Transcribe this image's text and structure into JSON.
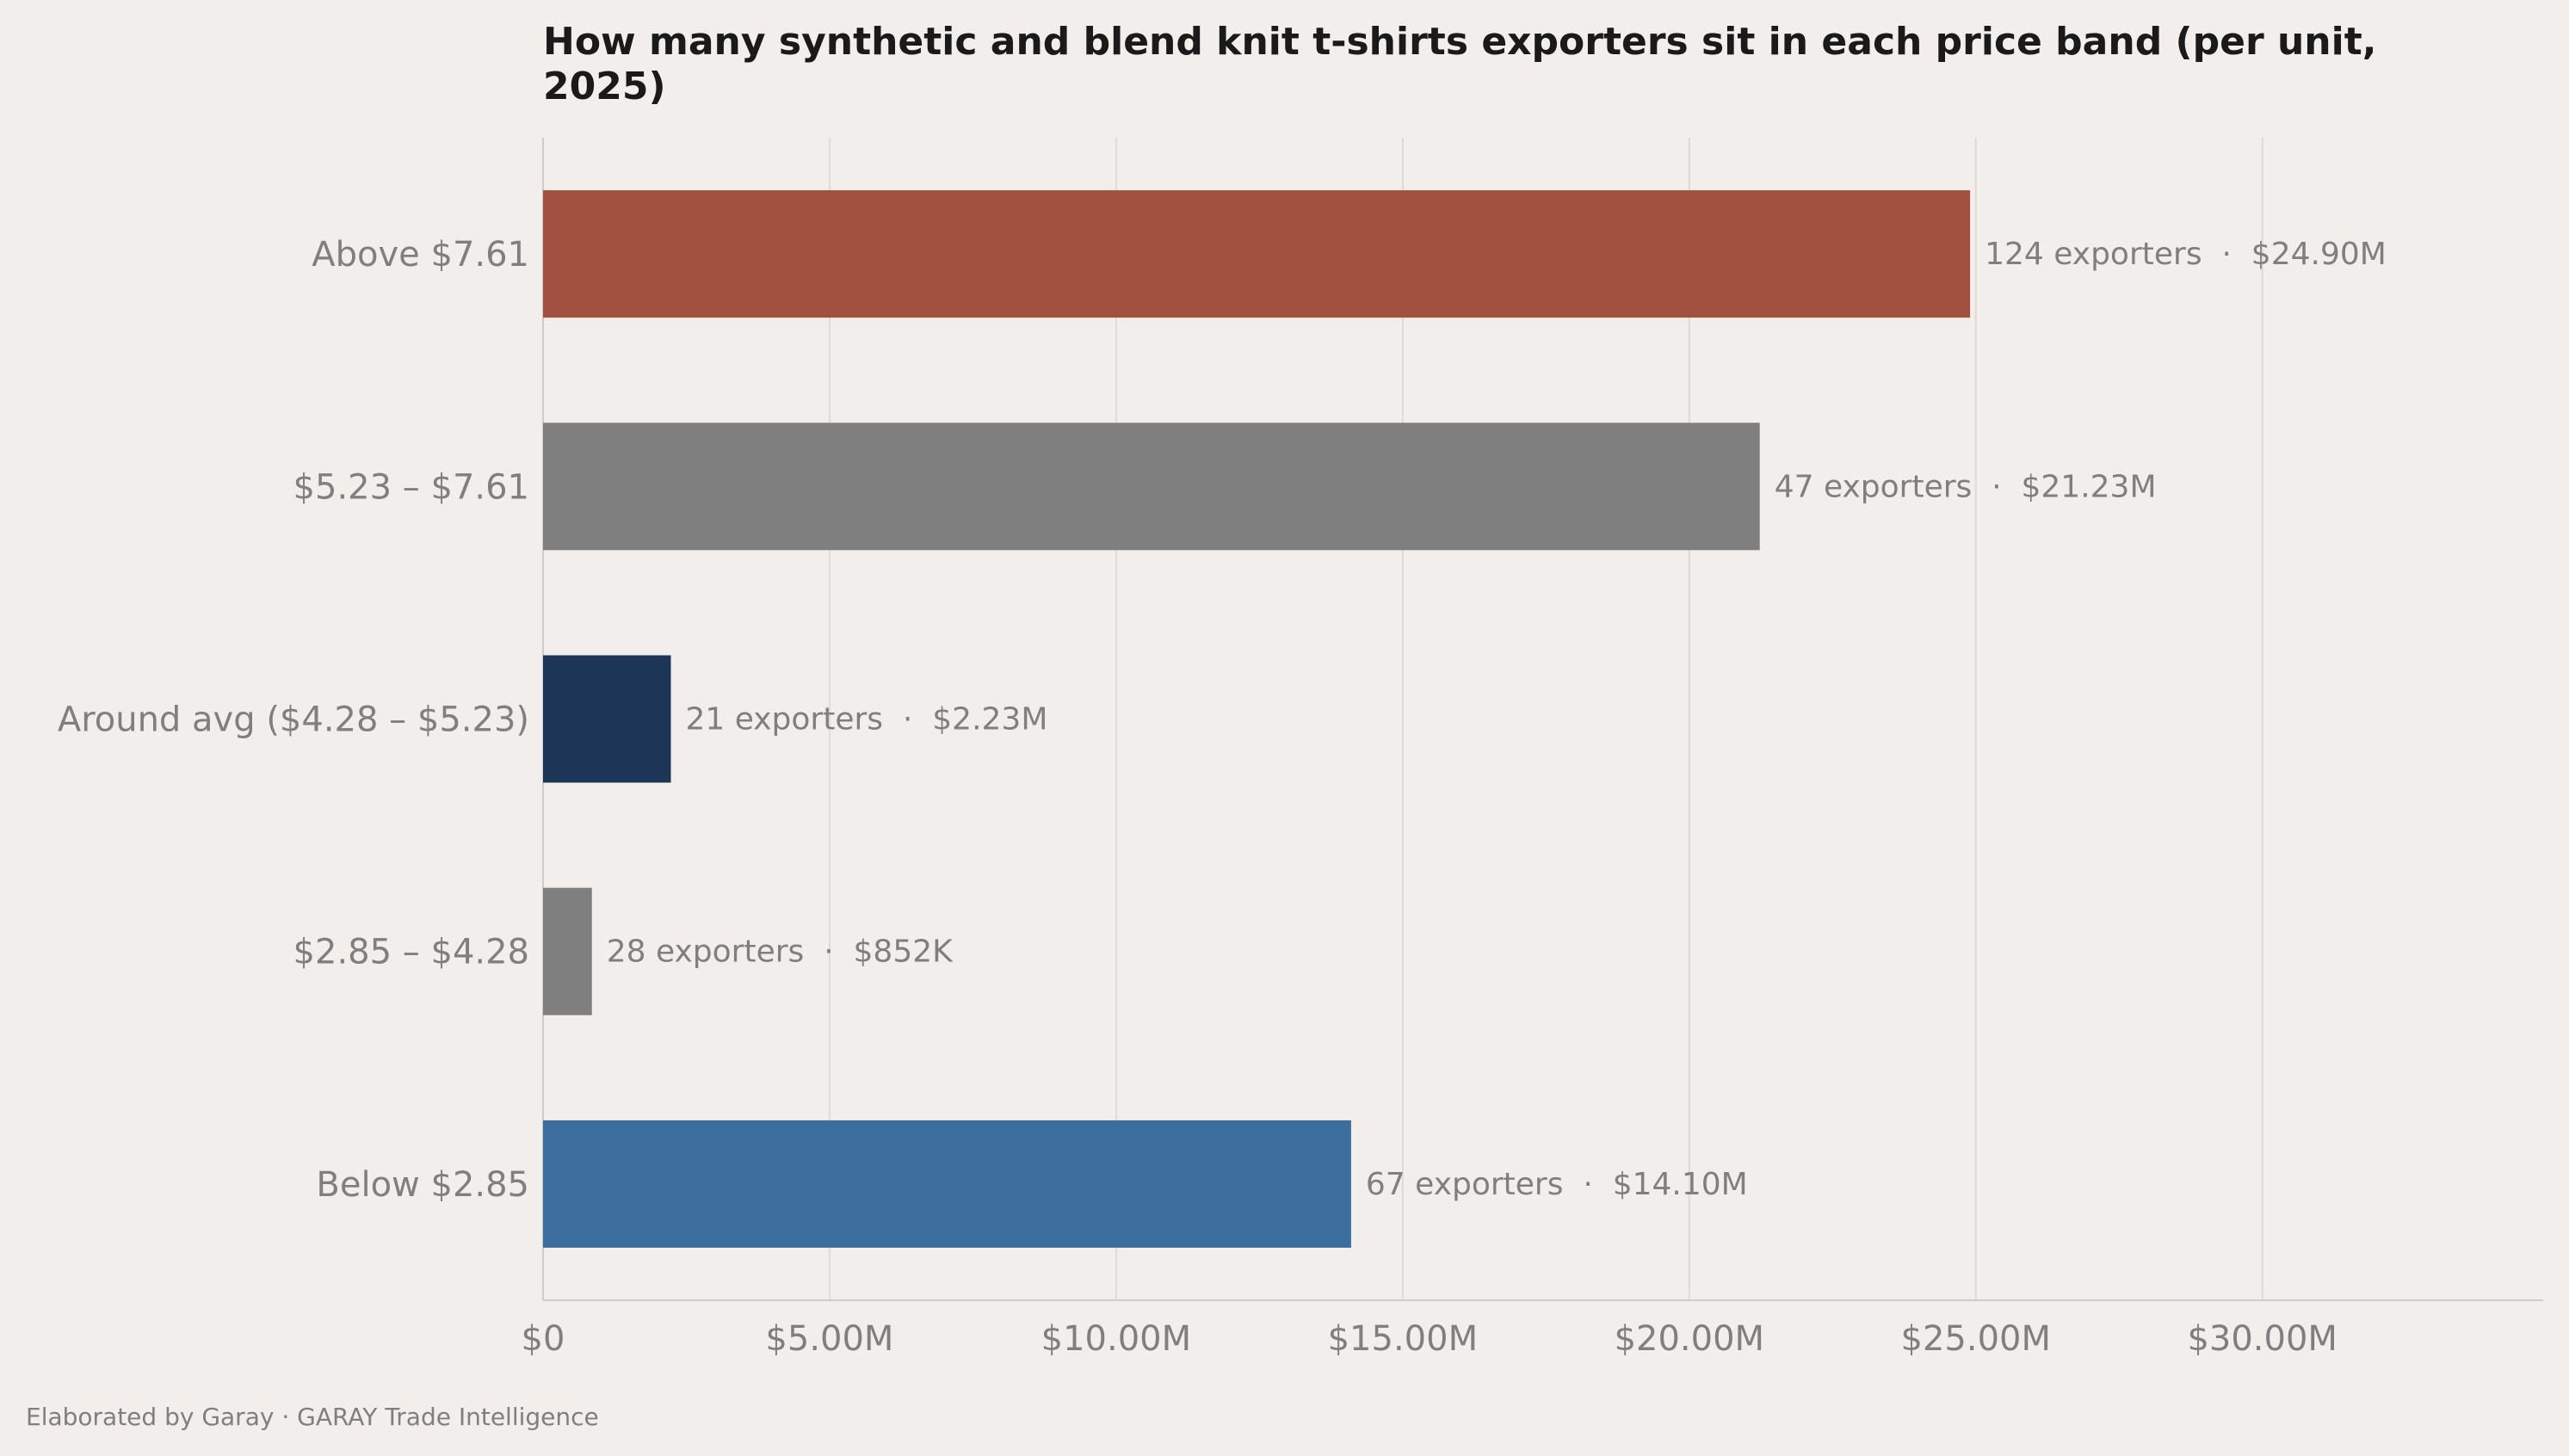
{
  "chart_data": {
    "type": "bar",
    "orientation": "horizontal",
    "title": "How many synthetic and blend knit t-shirts exporters sit in each price band (per unit, 2025)",
    "title_lines": [
      "How many synthetic and blend knit t-shirts exporters sit in each price band (per unit,",
      "2025)"
    ],
    "xlabel": "",
    "ylabel": "",
    "xlim": [
      0,
      34.9
    ],
    "x_tick_values": [
      0,
      5,
      10,
      15,
      20,
      25,
      30
    ],
    "x_tick_labels": [
      "$0",
      "$5.00M",
      "$10.00M",
      "$15.00M",
      "$20.00M",
      "$25.00M",
      "$30.00M"
    ],
    "grid": "vertical",
    "categories": [
      "Above $7.61",
      "$5.23 – $7.61",
      "Around avg ($4.28 – $5.23)",
      "$2.85 – $4.28",
      "Below $2.85"
    ],
    "values": [
      24.9,
      21.23,
      2.23,
      0.852,
      14.1
    ],
    "value_unit": "USD millions",
    "exporters": [
      124,
      47,
      21,
      28,
      67
    ],
    "data_labels": [
      "124 exporters  ·  $24.90M",
      "47 exporters  ·  $21.23M",
      "21 exporters  ·  $2.23M",
      "28 exporters  ·  $852K",
      "67 exporters  ·  $14.10M"
    ],
    "colors": [
      "#a25140",
      "#7f7f7f",
      "#1d3557",
      "#7f7f7f",
      "#3b6e9b"
    ]
  },
  "footer": {
    "credit": "Elaborated by Garay  ·  GARAY Trade Intelligence"
  },
  "style": {
    "background": "#f2eeeb",
    "grid_color": "#dedad6",
    "axis_color": "#cfcbc7",
    "text_color": "#7f7f7f",
    "title_color": "#1a1a1a"
  }
}
